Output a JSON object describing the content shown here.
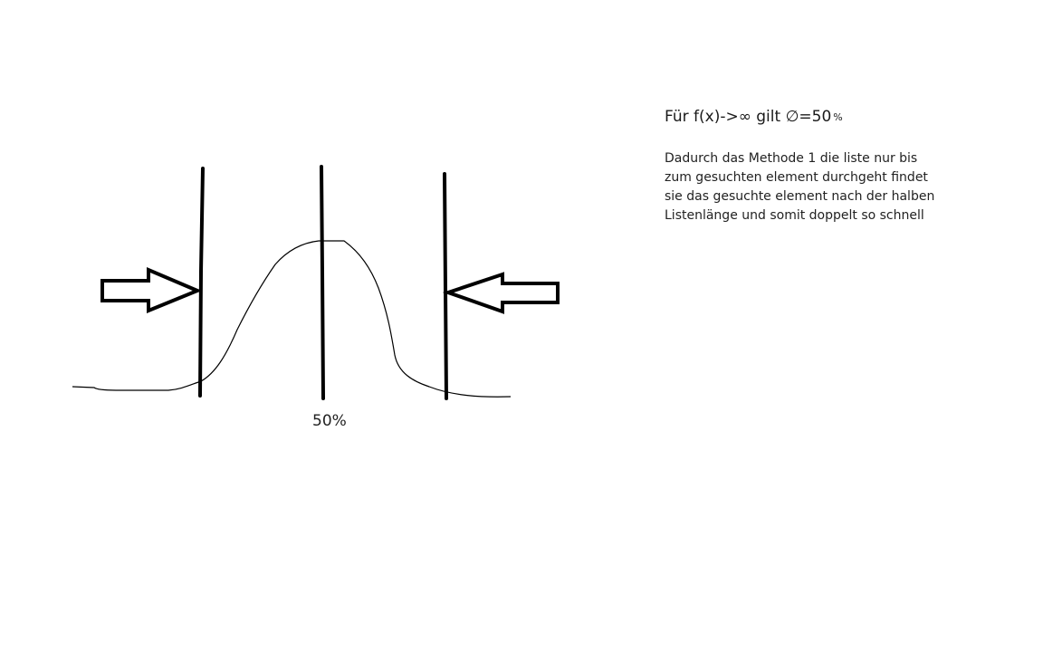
{
  "diagram": {
    "center_label": "50%"
  },
  "notes": {
    "heading_main": "Für f(x)->∞ gilt ∅=50",
    "heading_pct": "%",
    "paragraph_lines": [
      "Dadurch das Methode 1 die liste nur bis",
      "zum gesuchten element durchgeht findet",
      "sie das gesuchte element nach der halben",
      "Listenlänge und somit doppelt so schnell"
    ]
  },
  "colors": {
    "ink": "#000000",
    "text": "#222222",
    "background": "#ffffff"
  }
}
